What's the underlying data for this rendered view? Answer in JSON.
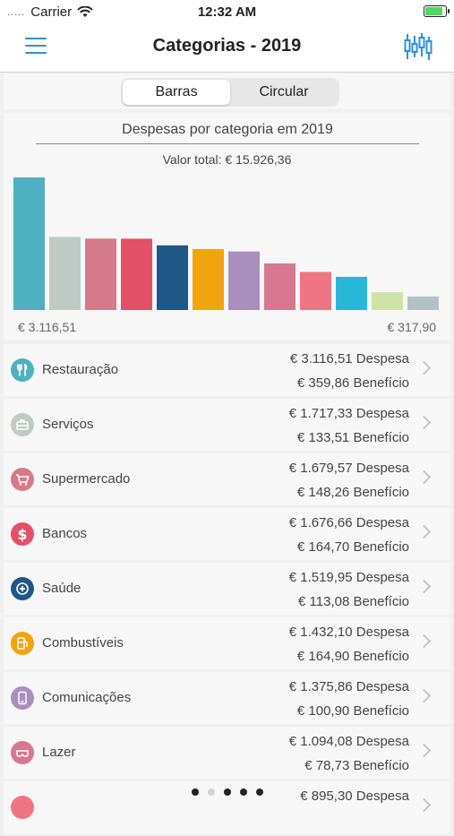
{
  "status": {
    "carrier": "Carrier",
    "time": "12:32 AM",
    "signal_dots": "....."
  },
  "header": {
    "title": "Categorias - 2019"
  },
  "segmented": {
    "options": [
      "Barras",
      "Circular"
    ],
    "selected": "Barras"
  },
  "chart": {
    "title": "Despesas por categoria em 2019",
    "total": "Valor total: € 15.926,36",
    "min_label": "€ 3.116,51",
    "max_label": "€ 317,90"
  },
  "chart_data": {
    "type": "bar",
    "title": "Despesas por categoria em 2019",
    "subtitle": "Valor total: € 15.926,36",
    "categories": [
      "Restauração",
      "Serviços",
      "Supermercado",
      "Bancos",
      "Saúde",
      "Combustíveis",
      "Comunicações",
      "Lazer",
      "",
      "",
      "",
      ""
    ],
    "values": [
      3116.51,
      1717.33,
      1679.57,
      1676.66,
      1519.95,
      1432.1,
      1375.86,
      1094.08,
      895.3,
      780,
      420,
      317.9
    ],
    "colors": [
      "#4eb0c0",
      "#bfcac4",
      "#d57a8a",
      "#e35067",
      "#1f5788",
      "#f2a40c",
      "#a88fbd",
      "#d77791",
      "#ef7585",
      "#27b8d8",
      "#cfe3a6",
      "#b3c1c6"
    ],
    "ylim": [
      0,
      3116.51
    ],
    "grid": false
  },
  "categories": [
    {
      "name": "Restauração",
      "expense": "€ 3.116,51 Despesa",
      "benefit": "€ 359,86 Benefício",
      "color": "#4eb0c0",
      "icon": "fork-knife-icon"
    },
    {
      "name": "Serviços",
      "expense": "€ 1.717,33 Despesa",
      "benefit": "€ 133,51 Benefício",
      "color": "#bfcac4",
      "icon": "services-icon"
    },
    {
      "name": "Supermercado",
      "expense": "€ 1.679,57 Despesa",
      "benefit": "€ 148,26 Benefício",
      "color": "#d57a8a",
      "icon": "cart-icon"
    },
    {
      "name": "Bancos",
      "expense": "€ 1.676,66 Despesa",
      "benefit": "€ 164,70 Benefício",
      "color": "#e35067",
      "icon": "dollar-icon"
    },
    {
      "name": "Saúde",
      "expense": "€ 1.519,95 Despesa",
      "benefit": "€ 113,08 Benefício",
      "color": "#1f5788",
      "icon": "health-icon"
    },
    {
      "name": "Combustíveis",
      "expense": "€ 1.432,10 Despesa",
      "benefit": "€ 164,90 Benefício",
      "color": "#f2a40c",
      "icon": "fuel-icon"
    },
    {
      "name": "Comunicações",
      "expense": "€ 1.375,86 Despesa",
      "benefit": "€ 100,90 Benefício",
      "color": "#a88fbd",
      "icon": "phone-icon"
    },
    {
      "name": "Lazer",
      "expense": "€ 1.094,08 Despesa",
      "benefit": "€ 78,73 Benefício",
      "color": "#d77791",
      "icon": "leisure-icon"
    },
    {
      "name": "",
      "expense": "€ 895,30 Despesa",
      "benefit": "",
      "color": "#ef7585",
      "icon": "category-icon"
    }
  ],
  "pager": {
    "count": 5,
    "active": 1
  }
}
